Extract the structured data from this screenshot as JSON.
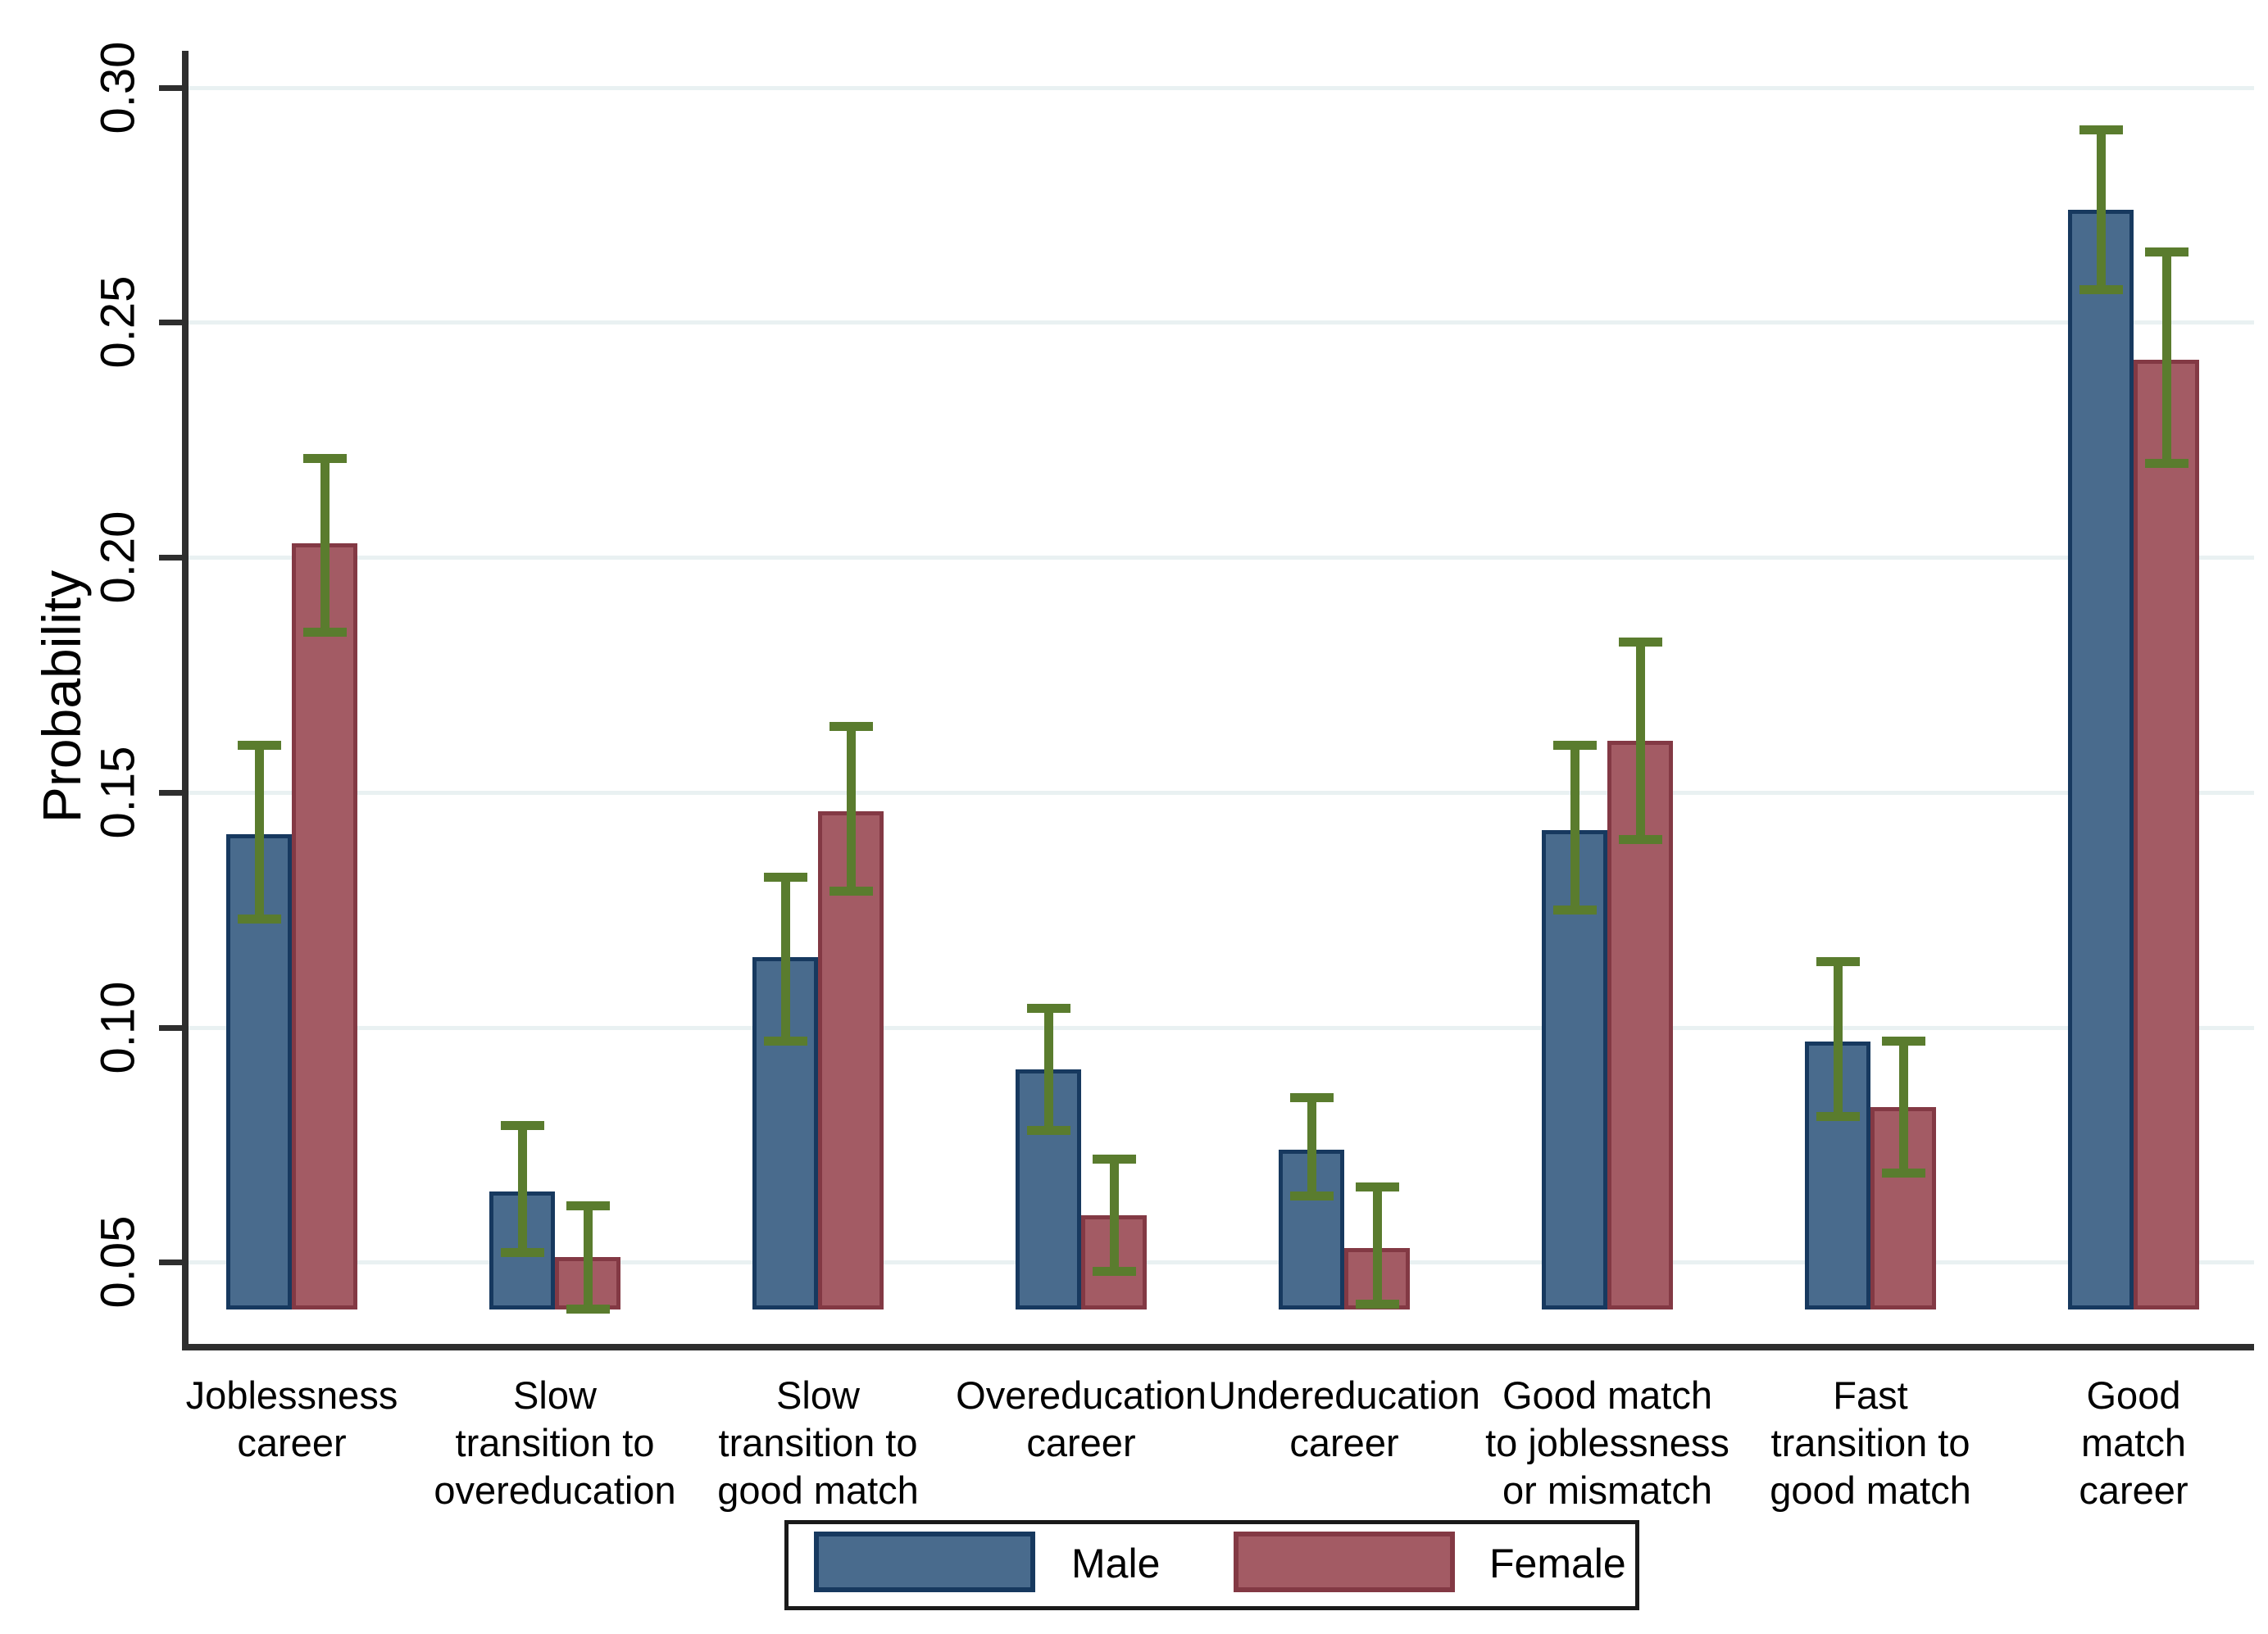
{
  "figure": {
    "ylabel": "Probability",
    "legend": {
      "male_label": "Male",
      "female_label": "Female"
    }
  },
  "chart_data": {
    "type": "bar",
    "title": "",
    "xlabel": "",
    "ylabel": "Probability",
    "ylim": [
      0.0326,
      0.3078
    ],
    "bar_base": 0.04,
    "grid": true,
    "legend_position": "bottom",
    "yticks": [
      0.05,
      0.1,
      0.15,
      0.2,
      0.25,
      0.3
    ],
    "ytick_labels": [
      "0.05",
      "0.10",
      "0.15",
      "0.20",
      "0.25",
      "0.30"
    ],
    "categories": [
      [
        "Joblessness",
        "career"
      ],
      [
        "Slow",
        "transition to",
        "overeducation"
      ],
      [
        "Slow",
        "transition to",
        "good match"
      ],
      [
        "Overeducation",
        "career"
      ],
      [
        "Undereducation",
        "career"
      ],
      [
        "Good match",
        "to joblessness",
        "or mismatch"
      ],
      [
        "Fast",
        "transition to",
        "good match"
      ],
      [
        "Good match",
        "career"
      ]
    ],
    "series": [
      {
        "name": "Male",
        "color": "#496b8d",
        "border_color": "#17395f",
        "values": [
          0.141,
          0.065,
          0.115,
          0.091,
          0.074,
          0.142,
          0.097,
          0.274
        ],
        "ci_low": [
          0.123,
          0.052,
          0.097,
          0.078,
          0.064,
          0.125,
          0.081,
          0.257
        ],
        "ci_high": [
          0.16,
          0.079,
          0.132,
          0.104,
          0.085,
          0.16,
          0.114,
          0.291
        ]
      },
      {
        "name": "Female",
        "color": "#a35b64",
        "border_color": "#833944",
        "values": [
          0.203,
          0.051,
          0.146,
          0.06,
          0.053,
          0.161,
          0.083,
          0.242
        ],
        "ci_low": [
          0.184,
          0.04,
          0.129,
          0.048,
          0.041,
          0.14,
          0.069,
          0.22
        ],
        "ci_high": [
          0.221,
          0.062,
          0.164,
          0.072,
          0.066,
          0.182,
          0.097,
          0.265
        ]
      }
    ],
    "error_bar_color": "#5a7c2e",
    "gridline_color": "#e9f1f2",
    "axis_color": "#2e2e2e",
    "text_color": "#000000"
  }
}
